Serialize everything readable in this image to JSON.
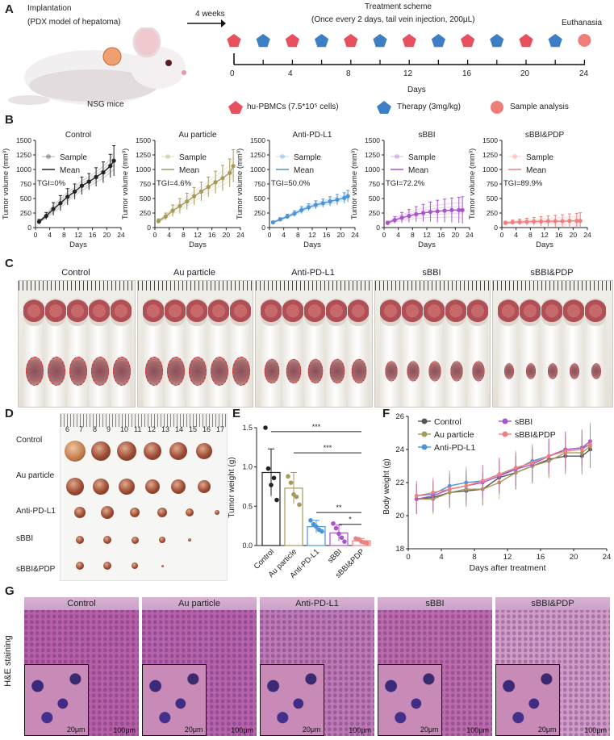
{
  "panel_letters": {
    "a": "A",
    "b": "B",
    "c": "C",
    "d": "D",
    "e": "E",
    "f": "F",
    "g": "G"
  },
  "panelA": {
    "implantation": "Implantation",
    "model": "(PDX model of hepatoma)",
    "weeks": "4 weeks",
    "mice": "NSG mice",
    "scheme_title": "Treatment scheme",
    "scheme_sub": "(Once every 2 days, tail vein injection, 200μL)",
    "euthanasia": "Euthanasia",
    "ticks": [
      "0",
      "4",
      "8",
      "12",
      "16",
      "20",
      "24"
    ],
    "days": "Days",
    "legend": {
      "pbmc": "hu-PBMCs (7.5*10⁵ cells)",
      "therapy": "Therapy (3mg/kg)",
      "sample": "Sample analysis"
    },
    "colors": {
      "pbmc": "#e8505e",
      "therapy": "#3c7fc4",
      "sample": "#ef7d7a"
    }
  },
  "panelB": {
    "sample_label": "Sample",
    "mean_label": "Mean",
    "xlabel": "Days",
    "ylabel": "Tumor volume (mm³)"
  },
  "panelC": {
    "groups": [
      "Control",
      "Au particle",
      "Anti-PD-L1",
      "sBBI",
      "sBBI&PDP"
    ]
  },
  "panelD": {
    "rows": [
      "Control",
      "Au particle",
      "Anti-PD-L1",
      "sBBI",
      "sBBI&PDP"
    ],
    "ruler": [
      "6",
      "7",
      "8",
      "9",
      "10",
      "11",
      "12",
      "13",
      "14",
      "15",
      "16",
      "17"
    ]
  },
  "panelE": {
    "sig": [
      "***",
      "***",
      "**",
      "*"
    ]
  },
  "panelG": {
    "side_label": "H&E staining",
    "groups": [
      "Control",
      "Au particle",
      "Anti-PD-L1",
      "sBBI",
      "sBBI&PDP"
    ],
    "scale_small": "20μm",
    "scale_large": "100μm"
  },
  "chart_data": [
    {
      "type": "line",
      "panel": "B",
      "title": "Control",
      "tgi": "TGI=0%",
      "color": "#222222",
      "x": [
        1,
        3,
        5,
        7,
        9,
        11,
        13,
        15,
        17,
        19,
        21,
        22
      ],
      "values": [
        100,
        200,
        320,
        420,
        530,
        620,
        720,
        790,
        870,
        950,
        1060,
        1150
      ],
      "err": [
        40,
        60,
        110,
        130,
        140,
        130,
        150,
        140,
        160,
        180,
        200,
        260
      ],
      "ylim": [
        0,
        1500
      ],
      "xlim": [
        0,
        24
      ],
      "yticks": [
        0,
        250,
        500,
        750,
        1000,
        1250,
        1500
      ],
      "xticks": [
        0,
        4,
        8,
        12,
        16,
        20,
        24
      ]
    },
    {
      "type": "line",
      "panel": "B",
      "title": "Au particle",
      "tgi": "TGI=4.6%",
      "color": "#a69a5a",
      "x": [
        1,
        3,
        5,
        7,
        9,
        11,
        13,
        15,
        17,
        19,
        21,
        22
      ],
      "values": [
        110,
        190,
        290,
        370,
        450,
        540,
        620,
        700,
        780,
        850,
        940,
        1060
      ],
      "err": [
        40,
        60,
        100,
        130,
        140,
        150,
        160,
        170,
        190,
        220,
        240,
        280
      ],
      "ylim": [
        0,
        1500
      ],
      "xlim": [
        0,
        24
      ],
      "yticks": [
        0,
        250,
        500,
        750,
        1000,
        1250,
        1500
      ],
      "xticks": [
        0,
        4,
        8,
        12,
        16,
        20,
        24
      ]
    },
    {
      "type": "line",
      "panel": "B",
      "title": "Anti-PD-L1",
      "tgi": "TGI=50.0%",
      "color": "#4d94d6",
      "x": [
        1,
        3,
        5,
        7,
        9,
        11,
        13,
        15,
        17,
        19,
        21,
        22
      ],
      "values": [
        90,
        140,
        190,
        240,
        300,
        350,
        390,
        420,
        450,
        480,
        510,
        540
      ],
      "err": [
        20,
        30,
        40,
        50,
        60,
        60,
        70,
        70,
        80,
        90,
        90,
        100
      ],
      "ylim": [
        0,
        1500
      ],
      "xlim": [
        0,
        24
      ],
      "yticks": [
        0,
        250,
        500,
        750,
        1000,
        1250,
        1500
      ],
      "xticks": [
        0,
        4,
        8,
        12,
        16,
        20,
        24
      ]
    },
    {
      "type": "line",
      "panel": "B",
      "title": "sBBI",
      "tgi": "TGI=72.2%",
      "color": "#a855c8",
      "x": [
        1,
        3,
        5,
        7,
        9,
        11,
        13,
        15,
        17,
        19,
        21,
        22
      ],
      "values": [
        80,
        130,
        170,
        200,
        230,
        250,
        270,
        280,
        290,
        300,
        300,
        300
      ],
      "err": [
        30,
        60,
        90,
        110,
        130,
        150,
        170,
        190,
        200,
        210,
        220,
        230
      ],
      "ylim": [
        0,
        1500
      ],
      "xlim": [
        0,
        24
      ],
      "yticks": [
        0,
        250,
        500,
        750,
        1000,
        1250,
        1500
      ],
      "xticks": [
        0,
        4,
        8,
        12,
        16,
        20,
        24
      ]
    },
    {
      "type": "line",
      "panel": "B",
      "title": "sBBI&PDP",
      "tgi": "TGI=89.9%",
      "color": "#f08080",
      "x": [
        1,
        3,
        5,
        7,
        9,
        11,
        13,
        15,
        17,
        19,
        21,
        22
      ],
      "values": [
        80,
        90,
        95,
        100,
        105,
        105,
        110,
        110,
        110,
        115,
        115,
        115
      ],
      "err": [
        30,
        40,
        50,
        60,
        70,
        80,
        90,
        100,
        110,
        120,
        130,
        140
      ],
      "ylim": [
        0,
        1500
      ],
      "xlim": [
        0,
        24
      ],
      "yticks": [
        0,
        250,
        500,
        750,
        1000,
        1250,
        1500
      ],
      "xticks": [
        0,
        4,
        8,
        12,
        16,
        20,
        24
      ]
    },
    {
      "type": "bar",
      "panel": "E",
      "categories": [
        "Control",
        "Au particle",
        "Anti-PD-L1",
        "sBBI",
        "sBBI&PDP"
      ],
      "values": [
        0.93,
        0.73,
        0.24,
        0.16,
        0.06
      ],
      "err": [
        0.3,
        0.2,
        0.08,
        0.1,
        0.03
      ],
      "points": [
        [
          1.5,
          0.98,
          0.77,
          0.86,
          0.58
        ],
        [
          0.88,
          0.8,
          0.65,
          0.62,
          0.52
        ],
        [
          0.32,
          0.27,
          0.24,
          0.2,
          0.18
        ],
        [
          0.28,
          0.22,
          0.15,
          0.1,
          0.05
        ],
        [
          0.09,
          0.08,
          0.05,
          0.04,
          0.03
        ]
      ],
      "colors": [
        "#222222",
        "#a69a5a",
        "#4d94d6",
        "#a855c8",
        "#f08080"
      ],
      "ylabel": "Tumor weight (g)",
      "ylim": [
        0,
        1.5
      ],
      "yticks": [
        "0.0",
        "0.5",
        "1.0",
        "1.5"
      ]
    },
    {
      "type": "line",
      "panel": "F",
      "xlabel": "Days after treatment",
      "ylabel": "Body weight (g)",
      "xlim": [
        0,
        24
      ],
      "ylim": [
        18,
        26
      ],
      "xticks": [
        0,
        4,
        8,
        12,
        16,
        20,
        24
      ],
      "yticks": [
        18,
        20,
        22,
        24,
        26
      ],
      "series": [
        {
          "name": "Control",
          "color": "#555555",
          "x": [
            1,
            3,
            5,
            7,
            9,
            11,
            13,
            15,
            17,
            19,
            21,
            22
          ],
          "values": [
            21.0,
            21.1,
            21.4,
            21.5,
            21.6,
            22.3,
            22.6,
            23.0,
            23.4,
            23.6,
            23.6,
            24.0
          ]
        },
        {
          "name": "Au particle",
          "color": "#a69a5a",
          "x": [
            1,
            3,
            5,
            7,
            9,
            11,
            13,
            15,
            17,
            19,
            21,
            22
          ],
          "values": [
            21.0,
            21.0,
            21.4,
            21.6,
            21.6,
            22.0,
            22.6,
            23.0,
            23.3,
            23.8,
            23.8,
            24.2
          ]
        },
        {
          "name": "Anti-PD-L1",
          "color": "#4d94d6",
          "x": [
            1,
            3,
            5,
            7,
            9,
            11,
            13,
            15,
            17,
            19,
            21,
            22
          ],
          "values": [
            21.2,
            21.3,
            21.8,
            22.0,
            22.1,
            22.5,
            22.8,
            23.3,
            23.6,
            24.0,
            24.1,
            24.3
          ]
        },
        {
          "name": "sBBI",
          "color": "#a855c8",
          "x": [
            1,
            3,
            5,
            7,
            9,
            11,
            13,
            15,
            17,
            19,
            21,
            22
          ],
          "values": [
            21.0,
            21.2,
            21.6,
            21.8,
            22.0,
            22.4,
            22.8,
            23.1,
            23.6,
            24.0,
            24.1,
            24.5
          ]
        },
        {
          "name": "sBBI&PDP",
          "color": "#f08080",
          "x": [
            1,
            3,
            5,
            7,
            9,
            11,
            13,
            15,
            17,
            19,
            21,
            22
          ],
          "values": [
            21.2,
            21.4,
            21.6,
            21.8,
            22.1,
            22.5,
            22.9,
            23.2,
            23.6,
            23.9,
            24.0,
            24.3
          ]
        }
      ]
    }
  ]
}
